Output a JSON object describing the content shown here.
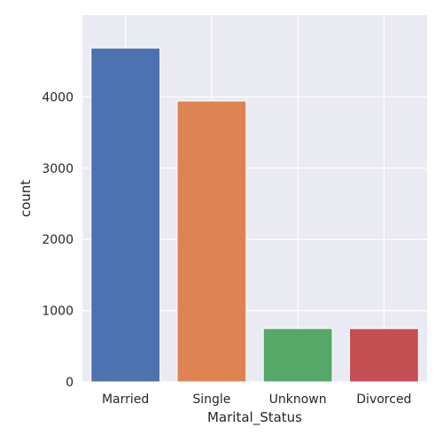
{
  "chart_data": {
    "type": "bar",
    "categories": [
      "Married",
      "Single",
      "Unknown",
      "Divorced"
    ],
    "values": [
      4687,
      3943,
      749,
      748
    ],
    "xlabel": "Marital_Status",
    "ylabel": "count",
    "ylim": [
      0,
      5150
    ],
    "yticks": [
      0,
      1000,
      2000,
      3000,
      4000
    ],
    "grid": true,
    "colors": [
      "#4c72b0",
      "#dd8452",
      "#55a868",
      "#c44e52"
    ],
    "background": "#eaeaf2"
  }
}
